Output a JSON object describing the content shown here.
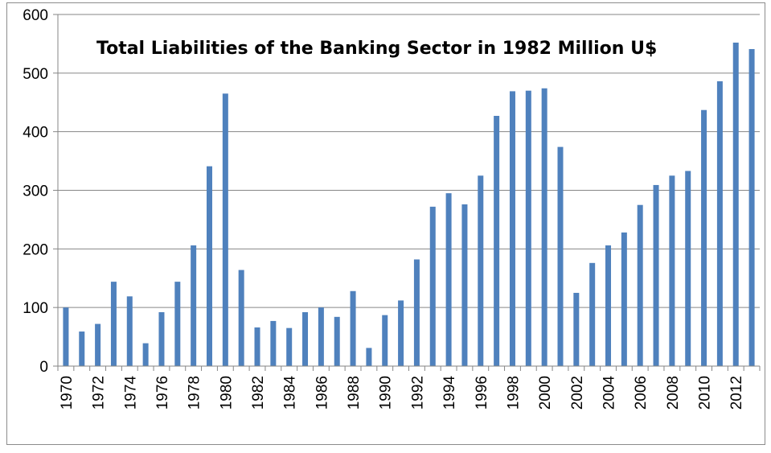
{
  "chart_data": {
    "type": "bar",
    "title": "Total Liabilities of the Banking Sector in 1982 Million U$",
    "xlabel": "",
    "ylabel": "",
    "ylim": [
      0,
      600
    ],
    "yticks": [
      0,
      100,
      200,
      300,
      400,
      500,
      600
    ],
    "grid": true,
    "legend": "none",
    "bar_color": "#4f81bd",
    "categories": [
      "1970",
      "1971",
      "1972",
      "1973",
      "1974",
      "1975",
      "1976",
      "1977",
      "1978",
      "1979",
      "1980",
      "1981",
      "1982",
      "1983",
      "1984",
      "1985",
      "1986",
      "1987",
      "1988",
      "1989",
      "1990",
      "1991",
      "1992",
      "1993",
      "1994",
      "1995",
      "1996",
      "1997",
      "1998",
      "1999",
      "2000",
      "2001",
      "2002",
      "2003",
      "2004",
      "2005",
      "2006",
      "2007",
      "2008",
      "2009",
      "2010",
      "2011",
      "2012",
      "2013"
    ],
    "x_tick_labels": [
      "1970",
      "1972",
      "1974",
      "1976",
      "1978",
      "1980",
      "1982",
      "1984",
      "1986",
      "1988",
      "1990",
      "1992",
      "1994",
      "1996",
      "1998",
      "2000",
      "2002",
      "2004",
      "2006",
      "2008",
      "2010",
      "2012"
    ],
    "values": [
      100,
      59,
      72,
      144,
      119,
      39,
      92,
      144,
      206,
      341,
      465,
      164,
      66,
      77,
      65,
      92,
      100,
      84,
      128,
      31,
      87,
      112,
      182,
      272,
      295,
      276,
      325,
      427,
      469,
      470,
      474,
      374,
      125,
      176,
      206,
      228,
      275,
      309,
      325,
      333,
      437,
      486,
      552,
      541
    ]
  }
}
